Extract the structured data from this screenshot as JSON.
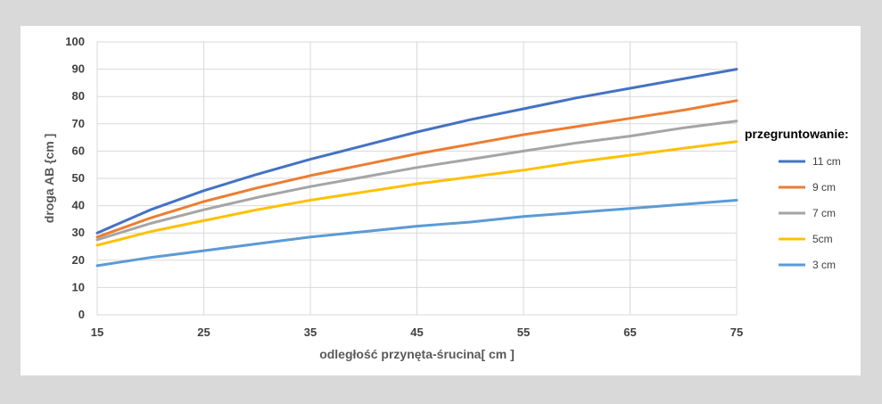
{
  "chart_data": {
    "type": "line",
    "xlabel": "odległość przynęta-śrucina[ cm ]",
    "ylabel": "droga AB {cm ]",
    "xlim": [
      15,
      75
    ],
    "ylim": [
      0,
      100
    ],
    "x_ticks": [
      15,
      25,
      35,
      45,
      55,
      65,
      75
    ],
    "y_ticks": [
      0,
      10,
      20,
      30,
      40,
      50,
      60,
      70,
      80,
      90,
      100
    ],
    "grid": true,
    "legend_title": "przegruntowanie:",
    "legend_position": "right",
    "x": [
      15,
      20,
      25,
      30,
      35,
      40,
      45,
      50,
      55,
      60,
      65,
      70,
      75
    ],
    "series": [
      {
        "name": "11 cm",
        "color": "#4472c4",
        "values": [
          30,
          38.5,
          45.5,
          51.5,
          57,
          62,
          67,
          71.5,
          75.5,
          79.5,
          83,
          86.5,
          90
        ]
      },
      {
        "name": "9 cm",
        "color": "#ed7d31",
        "values": [
          28.5,
          35.5,
          41.5,
          46.5,
          51,
          55,
          59,
          62.5,
          66,
          69,
          72,
          75,
          78.5
        ]
      },
      {
        "name": "7 cm",
        "color": "#a5a5a5",
        "values": [
          27.5,
          33.5,
          38.5,
          43,
          47,
          50.5,
          54,
          57,
          60,
          63,
          65.5,
          68.5,
          71
        ]
      },
      {
        "name": "5cm",
        "color": "#ffc000",
        "values": [
          25.5,
          30.5,
          34.5,
          38.5,
          42,
          45,
          48,
          50.5,
          53,
          56,
          58.5,
          61,
          63.5
        ]
      },
      {
        "name": "3 cm",
        "color": "#5b9bd5",
        "values": [
          18,
          21,
          23.5,
          26,
          28.5,
          30.5,
          32.5,
          34,
          36,
          37.5,
          39,
          40.5,
          42
        ]
      }
    ]
  }
}
